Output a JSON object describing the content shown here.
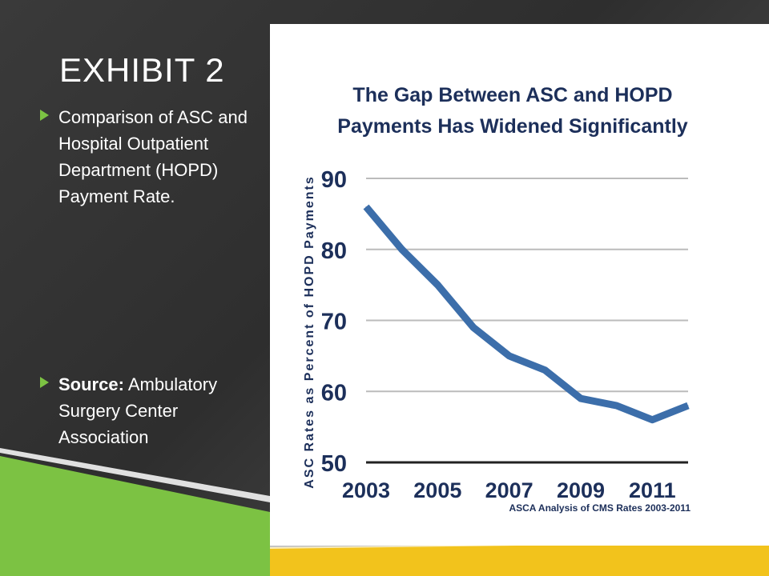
{
  "slide": {
    "title": "EXHIBIT 2",
    "bullet1": "Comparison of ASC and Hospital Outpatient Department (HOPD) Payment Rate.",
    "bullet2_bold": "Source:",
    "bullet2_rest": " Ambulatory Surgery Center Association",
    "accent_green": "#7cc243",
    "accent_yellow": "#f2c31c"
  },
  "chart_data": {
    "type": "line",
    "title_line1": "The Gap Between ASC and HOPD",
    "title_line2": "Payments Has Widened Significantly",
    "ylabel": "ASC Rates as Percent of HOPD Payments",
    "xlabel": "",
    "note": "ASCA Analysis of CMS Rates 2003-2011",
    "x": [
      2003,
      2004,
      2005,
      2006,
      2007,
      2008,
      2009,
      2010,
      2011,
      2012
    ],
    "series": [
      {
        "values": [
          86,
          80,
          75,
          69,
          65,
          63,
          59,
          58,
          56,
          58
        ],
        "color": "#3c6eaa"
      }
    ],
    "x_ticks": [
      "2003",
      "2005",
      "2007",
      "2009",
      "2011"
    ],
    "y_ticks": [
      "50",
      "60",
      "70",
      "80",
      "90"
    ],
    "ylim": [
      50,
      90
    ],
    "xlim": [
      2003,
      2012
    ],
    "grid": true
  }
}
